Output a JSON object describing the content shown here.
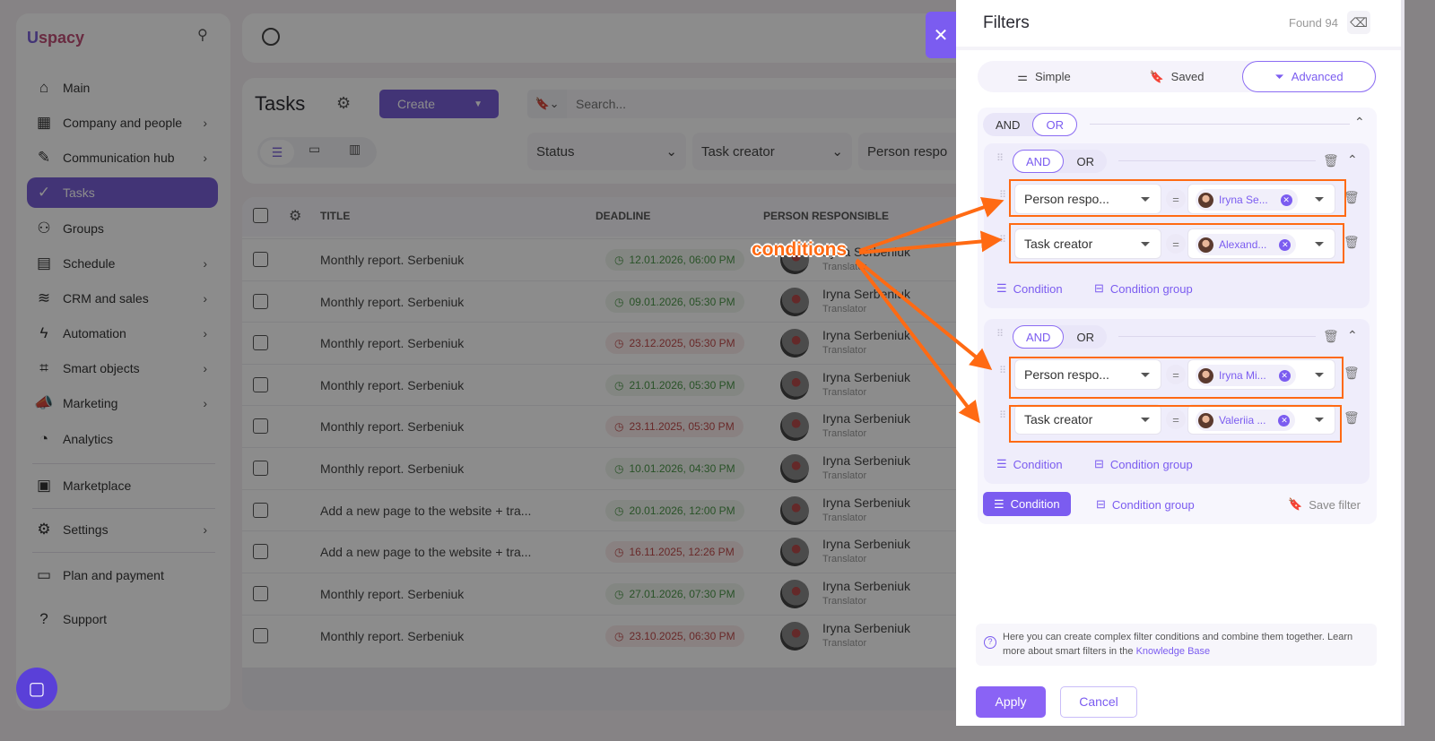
{
  "sidebar": {
    "logo": "Uspacy",
    "items": [
      {
        "label": "Main",
        "icon": "home-icon",
        "chevron": false
      },
      {
        "label": "Company and people",
        "icon": "building-icon",
        "chevron": true
      },
      {
        "label": "Communication hub",
        "icon": "chat-edit-icon",
        "chevron": true
      },
      {
        "label": "Tasks",
        "icon": "check-circle-icon",
        "chevron": false,
        "active": true
      },
      {
        "label": "Groups",
        "icon": "users-icon",
        "chevron": false
      },
      {
        "label": "Schedule",
        "icon": "calendar-icon",
        "chevron": true
      },
      {
        "label": "CRM and sales",
        "icon": "database-icon",
        "chevron": true
      },
      {
        "label": "Automation",
        "icon": "bolt-icon",
        "chevron": true
      },
      {
        "label": "Smart objects",
        "icon": "scan-icon",
        "chevron": true
      },
      {
        "label": "Marketing",
        "icon": "megaphone-icon",
        "chevron": true
      },
      {
        "label": "Analytics",
        "icon": "chart-icon",
        "chevron": false
      },
      {
        "label": "Marketplace",
        "icon": "store-icon",
        "chevron": false
      },
      {
        "label": "Settings",
        "icon": "gear-icon",
        "chevron": true
      },
      {
        "label": "Plan and payment",
        "icon": "wallet-icon",
        "chevron": false
      },
      {
        "label": "Support",
        "icon": "help-icon",
        "chevron": false
      }
    ]
  },
  "tasks": {
    "title": "Tasks",
    "create_label": "Create",
    "search_placeholder": "Search...",
    "filters": [
      "Status",
      "Task creator",
      "Person respo"
    ],
    "columns": {
      "title": "TITLE",
      "deadline": "DEADLINE",
      "person": "PERSON RESPONSIBLE"
    },
    "rows": [
      {
        "title": "Monthly report. Serbeniuk",
        "deadline": "12.01.2026, 06:00 PM",
        "overdue": false,
        "person": "Iryna Serbeniuk",
        "role": "Translator"
      },
      {
        "title": "Monthly report. Serbeniuk",
        "deadline": "09.01.2026, 05:30 PM",
        "overdue": false,
        "person": "Iryna Serbeniuk",
        "role": "Translator"
      },
      {
        "title": "Monthly report. Serbeniuk",
        "deadline": "23.12.2025, 05:30 PM",
        "overdue": true,
        "person": "Iryna Serbeniuk",
        "role": "Translator"
      },
      {
        "title": "Monthly report. Serbeniuk",
        "deadline": "21.01.2026, 05:30 PM",
        "overdue": false,
        "person": "Iryna Serbeniuk",
        "role": "Translator"
      },
      {
        "title": "Monthly report. Serbeniuk",
        "deadline": "23.11.2025, 05:30 PM",
        "overdue": true,
        "person": "Iryna Serbeniuk",
        "role": "Translator"
      },
      {
        "title": "Monthly report. Serbeniuk",
        "deadline": "10.01.2026, 04:30 PM",
        "overdue": false,
        "person": "Iryna Serbeniuk",
        "role": "Translator"
      },
      {
        "title": "Add a new page to the website + tra...",
        "deadline": "20.01.2026, 12:00 PM",
        "overdue": false,
        "person": "Iryna Serbeniuk",
        "role": "Translator"
      },
      {
        "title": "Add a new page to the website + tra...",
        "deadline": "16.11.2025, 12:26 PM",
        "overdue": true,
        "person": "Iryna Serbeniuk",
        "role": "Translator"
      },
      {
        "title": "Monthly report. Serbeniuk",
        "deadline": "27.01.2026, 07:30 PM",
        "overdue": false,
        "person": "Iryna Serbeniuk",
        "role": "Translator"
      },
      {
        "title": "Monthly report. Serbeniuk",
        "deadline": "23.10.2025, 06:30 PM",
        "overdue": true,
        "person": "Iryna Serbeniuk",
        "role": "Translator"
      }
    ]
  },
  "panel": {
    "title": "Filters",
    "found": "Found 94",
    "tabs": [
      "Simple",
      "Saved",
      "Advanced"
    ],
    "active_tab": "Advanced",
    "and": "AND",
    "or": "OR",
    "outer_operator": "OR",
    "groups": [
      {
        "operator": "AND",
        "conditions": [
          {
            "field": "Person respo...",
            "op": "=",
            "value": "Iryna Se..."
          },
          {
            "field": "Task creator",
            "op": "=",
            "value": "Alexand..."
          }
        ]
      },
      {
        "operator": "AND",
        "conditions": [
          {
            "field": "Person respo...",
            "op": "=",
            "value": "Iryna Mi..."
          },
          {
            "field": "Task creator",
            "op": "=",
            "value": "Valeriia ..."
          }
        ]
      }
    ],
    "condition_label": "Condition",
    "condition_group_label": "Condition group",
    "save_filter": "Save filter",
    "info_text": "Here you can create complex filter conditions and combine them together. Learn more about smart filters in the",
    "info_link": "Knowledge Base",
    "apply": "Apply",
    "cancel": "Cancel"
  },
  "annotation": {
    "label": "conditions",
    "color": "#ff6a13"
  },
  "colors": {
    "accent": "#7b5cf0",
    "ok": "#3e9a3a",
    "late": "#d64545"
  }
}
